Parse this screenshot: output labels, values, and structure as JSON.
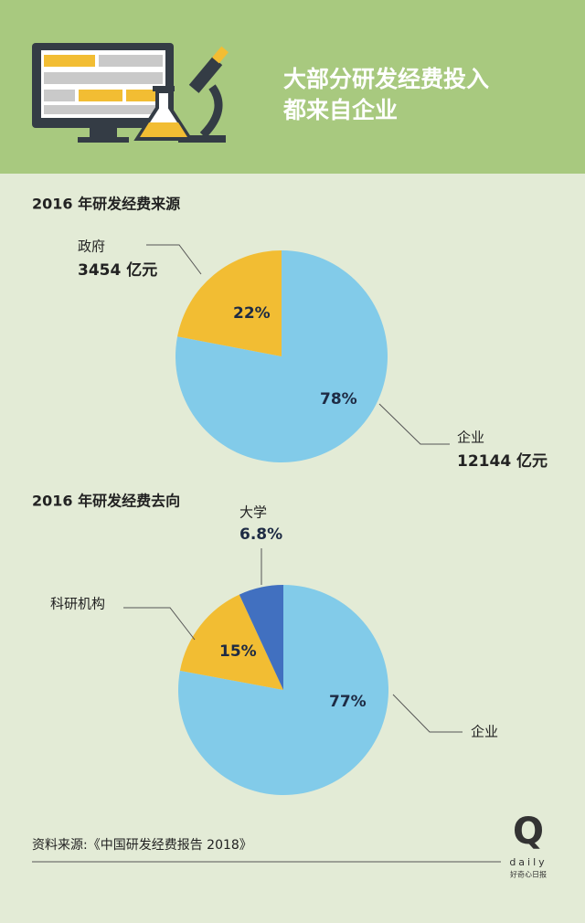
{
  "header": {
    "title_lines": [
      "大部分研发经费投入",
      "都来自企业"
    ]
  },
  "chart_data": [
    {
      "type": "pie",
      "title": "2016 年研发经费来源",
      "categories": [
        "企业",
        "政府"
      ],
      "values": [
        78,
        22
      ],
      "value_labels": [
        "78%",
        "22%"
      ],
      "annotations": [
        "12144 亿元",
        "3454 亿元"
      ],
      "colors": [
        "#82cbe9",
        "#f2bd33"
      ]
    },
    {
      "type": "pie",
      "title": "2016 年研发经费去向",
      "categories": [
        "企业",
        "科研机构",
        "大学"
      ],
      "values": [
        77,
        15,
        6.8
      ],
      "value_labels": [
        "77%",
        "15%",
        "6.8%"
      ],
      "colors": [
        "#82cbe9",
        "#f2bd33",
        "#4170c0"
      ]
    }
  ],
  "footer": {
    "source": "资料来源:《中国研发经费报告 2018》",
    "logo_mark": "Q",
    "logo_word": "daily",
    "logo_tagline": "好奇心日报"
  }
}
